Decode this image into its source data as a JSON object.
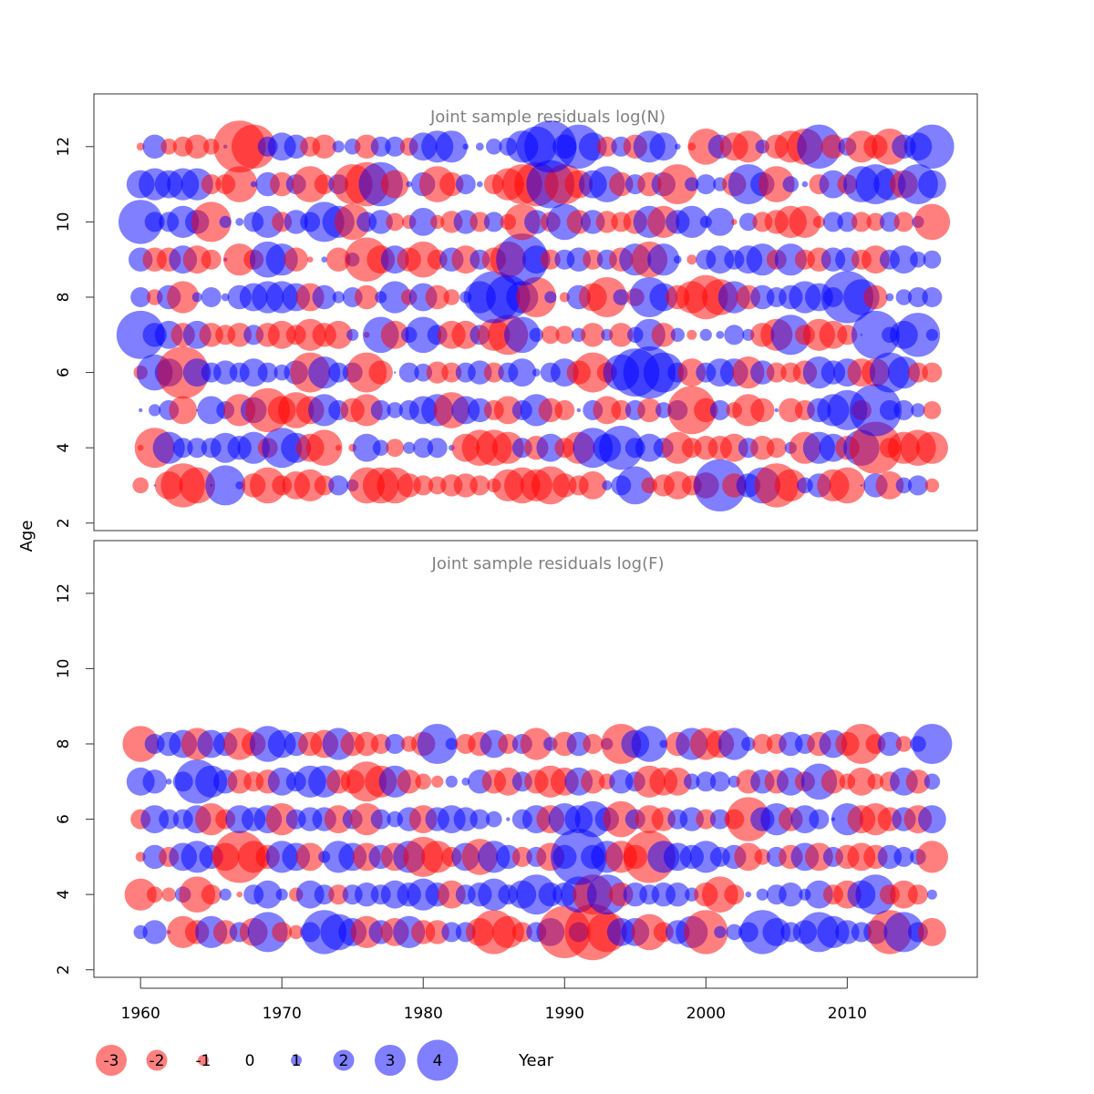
{
  "chart_data": {
    "type": "scatter",
    "xlabel": "Year",
    "ylabel": "Age",
    "x_ticks": [
      1960,
      1970,
      1980,
      1990,
      2000,
      2010
    ],
    "y_ticks": [
      2,
      4,
      6,
      8,
      10,
      12
    ],
    "xlim": [
      1956.7,
      2019.2
    ],
    "ylim": [
      1.8,
      13.4
    ],
    "bubble_scale": "radius proportional to |residual|; positive = blue, negative = red",
    "colors": {
      "positive": "#0000ff",
      "negative": "#ff0000",
      "opacity": 0.5,
      "title": "#808080"
    },
    "years": [
      1960,
      1961,
      1962,
      1963,
      1964,
      1965,
      1966,
      1967,
      1968,
      1969,
      1970,
      1971,
      1972,
      1973,
      1974,
      1975,
      1976,
      1977,
      1978,
      1979,
      1980,
      1981,
      1982,
      1983,
      1984,
      1985,
      1986,
      1987,
      1988,
      1989,
      1990,
      1991,
      1992,
      1993,
      1994,
      1995,
      1996,
      1997,
      1998,
      1999,
      2000,
      2001,
      2002,
      2003,
      2004,
      2005,
      2006,
      2007,
      2008,
      2009,
      2010,
      2011,
      2012,
      2013,
      2014,
      2015,
      2016
    ],
    "legend": {
      "values": [
        -3,
        -2,
        -1,
        0,
        1,
        2,
        3,
        4
      ],
      "labels": [
        "-3",
        "-2",
        "-1",
        "0",
        "1",
        "2",
        "3",
        "4"
      ],
      "placement": "bottom-left"
    },
    "panels": [
      {
        "title": "Joint sample residuals log(N)",
        "ages": [
          3,
          4,
          5,
          6,
          7,
          8,
          9,
          10,
          11,
          12
        ],
        "residuals": {
          "3": [
            -0.8,
            0.1,
            -1.4,
            -2.2,
            -1.8,
            0.1,
            2.0,
            0.4,
            -1.2,
            -1.8,
            -1.0,
            -1.4,
            -1.6,
            -1.0,
            1.0,
            0.6,
            -1.8,
            -1.8,
            -1.8,
            -1.2,
            -1.0,
            -0.9,
            -1.1,
            -1.2,
            -1.0,
            -0.7,
            -1.6,
            -1.8,
            -1.6,
            -1.9,
            -1.2,
            -1.0,
            -1.4,
            0.5,
            1.0,
            1.9,
            -0.8,
            -1.1,
            -1.4,
            -1.0,
            -1.3,
            2.6,
            -1.2,
            1.2,
            1.8,
            -2.2,
            -1.6,
            0.8,
            1.2,
            -1.6,
            -1.8,
            0.1,
            1.2,
            -1.4,
            0.8,
            1.0,
            -0.7
          ],
          "4": [
            -0.3,
            -2.0,
            1.6,
            1.0,
            1.0,
            1.0,
            1.5,
            1.2,
            1.6,
            -1.0,
            2.0,
            1.5,
            -1.4,
            -1.8,
            -0.3,
            -0.4,
            1.4,
            0.8,
            -0.9,
            0.6,
            1.0,
            1.0,
            0.3,
            -1.4,
            -1.8,
            -1.8,
            -1.6,
            1.0,
            -1.2,
            1.4,
            -1.0,
            -1.6,
            2.0,
            1.4,
            2.2,
            1.0,
            1.4,
            1.0,
            -1.6,
            -1.0,
            -1.2,
            -1.2,
            -1.4,
            1.0,
            -1.2,
            -1.0,
            0.6,
            -1.6,
            1.6,
            1.4,
            -1.2,
            1.8,
            -2.6,
            -1.0,
            -1.6,
            -1.8,
            -1.6
          ],
          "5": [
            0.2,
            0.6,
            1.0,
            -1.4,
            0.1,
            1.4,
            0.9,
            -1.6,
            1.3,
            -2.2,
            -1.4,
            -1.8,
            -1.4,
            1.6,
            1.0,
            -1.2,
            -1.6,
            1.0,
            0.8,
            1.0,
            1.4,
            1.6,
            -1.8,
            1.4,
            1.2,
            -1.0,
            -1.4,
            1.0,
            1.6,
            -1.2,
            -1.0,
            0.2,
            1.0,
            -1.4,
            -1.0,
            1.0,
            -1.2,
            0.8,
            1.0,
            -2.4,
            -1.2,
            1.0,
            -0.8,
            -1.6,
            -1.2,
            0.2,
            -1.2,
            -1.0,
            1.2,
            1.6,
            2.0,
            -1.0,
            2.6,
            1.0,
            1.0,
            0.7,
            -0.9
          ],
          "6": [
            -0.7,
            1.8,
            1.4,
            -2.6,
            1.4,
            1.0,
            1.2,
            1.0,
            1.4,
            1.0,
            0.8,
            1.2,
            -2.0,
            1.6,
            1.0,
            1.0,
            -2.0,
            -1.2,
            0.1,
            1.0,
            0.9,
            -1.1,
            -1.0,
            1.0,
            1.2,
            -1.0,
            1.0,
            1.4,
            0.4,
            1.0,
            1.4,
            -1.2,
            -2.0,
            -1.0,
            1.8,
            2.4,
            2.6,
            2.0,
            1.0,
            -1.4,
            1.0,
            1.4,
            1.4,
            -1.6,
            1.2,
            -1.0,
            -1.0,
            -1.2,
            1.6,
            1.2,
            1.4,
            -1.4,
            -1.4,
            2.0,
            1.6,
            -1.0,
            -1.0
          ],
          "7": [
            2.4,
            1.2,
            1.4,
            -1.2,
            1.4,
            -1.2,
            -1.0,
            -1.2,
            1.0,
            -1.2,
            -1.4,
            -1.0,
            -1.6,
            -1.2,
            -1.4,
            0.6,
            -0.3,
            1.8,
            -1.4,
            0.8,
            1.8,
            1.0,
            -1.4,
            -1.4,
            1.0,
            -1.6,
            -2.0,
            1.8,
            0.7,
            -0.9,
            -0.9,
            0.7,
            -1.2,
            0.6,
            -1.2,
            0.8,
            1.6,
            -1.2,
            0.7,
            -0.5,
            0.6,
            0.4,
            1.0,
            0.6,
            -1.2,
            -1.6,
            2.0,
            -1.0,
            -1.6,
            -1.4,
            -1.0,
            0.1,
            2.4,
            0.8,
            1.4,
            2.2,
            0.6
          ],
          "8": [
            1.0,
            -0.8,
            1.2,
            -1.6,
            0.5,
            1.0,
            0.4,
            1.2,
            1.4,
            1.6,
            1.6,
            1.4,
            -1.4,
            1.2,
            0.6,
            1.0,
            -1.2,
            0.6,
            1.6,
            -0.8,
            1.4,
            -1.2,
            -0.8,
            0.6,
            1.6,
            2.6,
            2.2,
            1.6,
            -2.0,
            0.6,
            -0.5,
            1.2,
            -1.4,
            -2.0,
            0.8,
            -0.9,
            2.0,
            1.4,
            -1.2,
            -1.6,
            -2.2,
            -1.8,
            1.6,
            -1.2,
            1.2,
            1.0,
            1.2,
            1.6,
            1.4,
            1.0,
            2.6,
            1.8,
            -1.2,
            0.4,
            0.8,
            1.0,
            1.0
          ],
          "9": [
            1.2,
            -1.2,
            -1.2,
            1.4,
            -1.4,
            -1.0,
            0.2,
            -1.6,
            -1.0,
            1.8,
            1.6,
            -1.2,
            -0.3,
            0.3,
            -1.2,
            0.7,
            -2.2,
            -1.4,
            1.4,
            -1.2,
            -1.8,
            -1.0,
            1.2,
            -1.4,
            1.0,
            -1.2,
            -1.8,
            2.6,
            1.4,
            -1.0,
            1.0,
            1.2,
            -1.0,
            1.0,
            -1.2,
            1.6,
            -1.8,
            1.6,
            0.4,
            -0.5,
            1.0,
            1.4,
            1.0,
            1.4,
            1.6,
            -1.0,
            1.6,
            -1.0,
            -1.2,
            1.2,
            1.2,
            -1.0,
            -1.4,
            1.0,
            1.4,
            0.8,
            0.9
          ],
          "10": [
            2.2,
            1.0,
            1.0,
            1.6,
            1.2,
            -2.0,
            0.6,
            0.4,
            1.0,
            1.6,
            -1.0,
            1.2,
            1.0,
            2.0,
            1.6,
            -1.8,
            1.0,
            1.2,
            -0.9,
            -0.7,
            1.4,
            -0.7,
            -1.1,
            1.2,
            -1.0,
            1.0,
            -0.8,
            -1.8,
            1.2,
            -1.0,
            1.8,
            -1.2,
            1.2,
            -1.1,
            -1.0,
            -1.2,
            1.6,
            -1.6,
            1.2,
            1.6,
            0.6,
            1.4,
            -0.3,
            0.9,
            -1.0,
            -1.2,
            -1.6,
            -1.6,
            -0.6,
            1.0,
            1.0,
            -1.0,
            -0.9,
            1.0,
            -1.0,
            0.6,
            -1.8
          ],
          "11": [
            1.4,
            1.6,
            1.4,
            1.6,
            1.6,
            -1.0,
            -1.0,
            -1.8,
            0.3,
            1.2,
            -1.2,
            1.0,
            -1.8,
            -1.0,
            1.0,
            -2.0,
            -2.2,
            2.2,
            -1.4,
            0.3,
            1.2,
            -1.8,
            -1.2,
            1.0,
            0.3,
            -1.0,
            -1.6,
            -2.0,
            -2.2,
            2.4,
            -2.0,
            -1.4,
            1.4,
            1.8,
            -1.2,
            1.0,
            -1.2,
            1.2,
            -2.0,
            0.7,
            1.0,
            0.7,
            -1.2,
            2.0,
            1.2,
            -1.8,
            0.8,
            0.3,
            -1.0,
            1.4,
            -1.0,
            1.8,
            2.0,
            1.6,
            -1.4,
            2.0,
            1.4
          ],
          "12": [
            -0.4,
            1.2,
            -0.8,
            -1.0,
            -1.2,
            -0.8,
            0.2,
            -2.6,
            -2.2,
            1.0,
            1.4,
            1.2,
            -1.0,
            -1.2,
            0.6,
            0.8,
            -1.2,
            1.0,
            1.0,
            -0.9,
            1.4,
            1.6,
            1.6,
            0.3,
            0.4,
            0.8,
            0.9,
            1.6,
            2.0,
            2.6,
            1.2,
            2.2,
            1.4,
            -1.0,
            1.0,
            -1.2,
            1.6,
            1.4,
            0.3,
            -0.4,
            -1.8,
            1.2,
            -1.4,
            -1.6,
            0.7,
            -1.2,
            -1.6,
            -1.8,
            2.2,
            -1.2,
            0.9,
            -1.6,
            -1.2,
            -1.8,
            1.2,
            1.4,
            2.2
          ]
        }
      },
      {
        "title": "Joint sample residuals log(F)",
        "ages": [
          3,
          4,
          5,
          6,
          7,
          8
        ],
        "residuals": {
          "3": [
            0.7,
            1.2,
            0.2,
            -1.6,
            -1.2,
            1.6,
            -1.2,
            1.0,
            -1.4,
            2.0,
            -1.0,
            -0.7,
            1.0,
            2.2,
            1.8,
            1.4,
            -1.6,
            1.2,
            -1.4,
            1.6,
            -1.2,
            -1.2,
            1.0,
            1.0,
            -1.4,
            -2.2,
            -1.6,
            -1.0,
            1.0,
            1.4,
            -2.6,
            1.0,
            -2.8,
            -2.0,
            1.4,
            1.4,
            -1.8,
            -1.0,
            1.2,
            1.6,
            -2.2,
            0.6,
            0.8,
            1.0,
            2.2,
            1.4,
            1.0,
            1.2,
            2.0,
            1.6,
            1.2,
            1.0,
            1.2,
            -2.2,
            2.0,
            1.0,
            -1.4
          ],
          "4": [
            -1.6,
            -0.8,
            -0.7,
            0.8,
            -1.8,
            -1.0,
            0.6,
            -0.3,
            1.0,
            1.4,
            0.6,
            -0.7,
            1.4,
            1.0,
            -1.0,
            1.0,
            1.2,
            1.0,
            1.4,
            1.2,
            1.6,
            1.2,
            -1.4,
            1.0,
            1.2,
            1.6,
            1.0,
            1.4,
            2.0,
            1.2,
            1.2,
            1.8,
            -2.0,
            2.0,
            -1.2,
            1.2,
            1.0,
            1.2,
            1.2,
            0.7,
            -1.2,
            -1.8,
            -1.0,
            0.3,
            0.6,
            1.0,
            1.2,
            0.6,
            1.4,
            -1.0,
            -1.4,
            1.4,
            2.0,
            -1.0,
            -1.4,
            -1.0,
            0.5
          ],
          "5": [
            -0.5,
            1.2,
            -1.0,
            1.4,
            1.6,
            1.2,
            -1.4,
            -2.6,
            -1.6,
            -1.2,
            1.6,
            1.4,
            -1.4,
            0.6,
            1.6,
            1.4,
            -1.4,
            1.2,
            -1.4,
            1.6,
            -2.0,
            -1.6,
            -1.0,
            1.4,
            -1.8,
            1.6,
            1.2,
            -1.0,
            1.0,
            -1.4,
            1.2,
            2.8,
            1.2,
            1.6,
            -1.6,
            -1.2,
            -2.6,
            1.6,
            1.4,
            1.2,
            1.6,
            1.0,
            1.2,
            -1.4,
            -0.8,
            1.0,
            -1.2,
            1.4,
            -1.4,
            1.0,
            -1.2,
            -1.4,
            -1.2,
            1.2,
            1.0,
            0.8,
            -1.6
          ],
          "6": [
            -1.0,
            1.4,
            1.0,
            1.0,
            1.4,
            -1.6,
            -1.0,
            1.4,
            1.2,
            1.4,
            -1.6,
            1.0,
            1.2,
            1.2,
            -1.4,
            1.0,
            -1.6,
            1.0,
            0.8,
            1.2,
            -1.4,
            1.2,
            1.4,
            1.2,
            1.0,
            0.8,
            0.2,
            1.0,
            1.4,
            -1.4,
            1.6,
            1.4,
            1.8,
            1.2,
            -1.8,
            1.0,
            -1.4,
            -1.2,
            1.0,
            1.2,
            -1.0,
            1.0,
            -1.0,
            -2.2,
            1.2,
            1.6,
            -1.2,
            1.4,
            1.0,
            0.2,
            1.6,
            -1.4,
            -1.6,
            -1.2,
            1.2,
            -1.4,
            1.4
          ],
          "7": [
            1.4,
            1.2,
            0.3,
            1.0,
            2.2,
            1.6,
            1.2,
            -1.2,
            -1.0,
            -1.2,
            1.4,
            1.0,
            1.6,
            1.6,
            -1.2,
            -1.2,
            -2.0,
            -1.6,
            1.6,
            -1.2,
            -0.8,
            -0.6,
            0.6,
            0.4,
            1.2,
            -1.2,
            -1.4,
            1.0,
            -1.2,
            -1.6,
            -1.4,
            1.4,
            -1.2,
            -0.8,
            1.2,
            1.0,
            -1.6,
            -1.4,
            -1.4,
            0.8,
            1.0,
            1.0,
            0.6,
            -1.2,
            1.2,
            -1.2,
            1.4,
            -1.0,
            1.8,
            -1.2,
            -0.8,
            -1.4,
            -0.8,
            -1.0,
            1.4,
            -1.2,
            0.8
          ],
          "8": [
            -1.8,
            1.0,
            1.2,
            1.4,
            -1.6,
            1.4,
            1.2,
            -1.6,
            -1.2,
            1.8,
            1.4,
            1.2,
            -1.2,
            -1.4,
            1.6,
            -1.2,
            -1.2,
            -1.0,
            1.0,
            -0.8,
            -1.2,
            2.0,
            0.6,
            -1.0,
            -1.2,
            1.4,
            -1.0,
            1.0,
            -1.6,
            0.7,
            -1.2,
            1.2,
            -1.0,
            0.6,
            -2.0,
            1.4,
            1.8,
            0.4,
            -1.2,
            1.6,
            -1.6,
            -1.4,
            1.6,
            0.7,
            -1.0,
            -1.0,
            1.2,
            1.0,
            -1.2,
            1.4,
            -1.2,
            -2.0,
            -1.0,
            1.2,
            -0.8,
            0.8,
            2.0
          ]
        }
      }
    ]
  }
}
